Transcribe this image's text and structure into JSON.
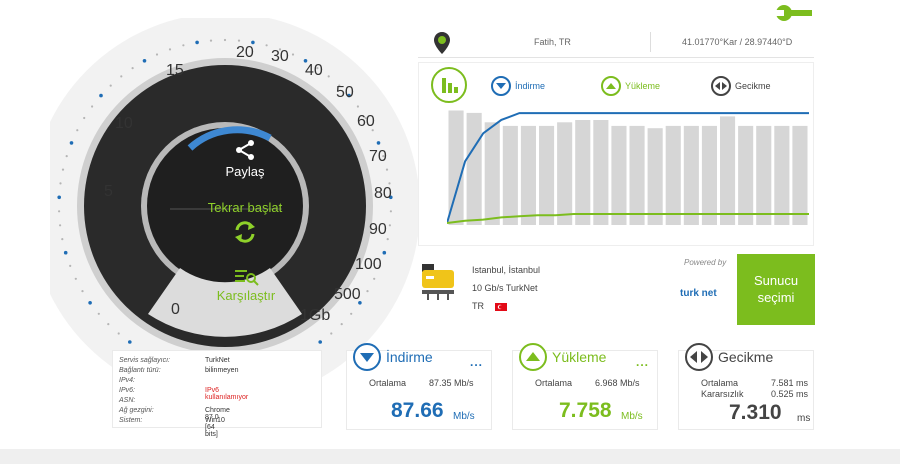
{
  "location": {
    "city": "Fatih, TR",
    "coordinates": "41.01770°Kar / 28.97440°D"
  },
  "gauge": {
    "share_label": "Paylaş",
    "restart_label": "Tekrar başlat",
    "compare_label": "Karşılaştır",
    "ticks": [
      "0",
      "5",
      "10",
      "15",
      "20",
      "30",
      "40",
      "50",
      "60",
      "70",
      "80",
      "90",
      "100",
      "500",
      "1Gb"
    ]
  },
  "legend": {
    "download": "İndirme",
    "upload": "Yükleme",
    "latency": "Gecikme"
  },
  "colors": {
    "accent_green": "#7cbd1e",
    "download_blue": "#1f6db5",
    "latency_dark": "#444444",
    "gauge_dark": "#2a2a2a"
  },
  "server": {
    "name": "Istanbul, İstanbul",
    "provider": "10 Gb/s TurkNet",
    "country": "TR",
    "powered_by": "Powered by",
    "sponsor": "turk net",
    "select_label": "Sunucu seçimi"
  },
  "info": {
    "rows": [
      {
        "label": "Servis sağlayıcı:",
        "value": "TurkNet"
      },
      {
        "label": "Bağlantı türü:",
        "value": "bilinmeyen"
      },
      {
        "label": "IPv4:",
        "value": ""
      },
      {
        "label": "IPv6:",
        "value": "IPv6 kullanılamıyor"
      },
      {
        "label": "ASN:",
        "value": ""
      },
      {
        "label": "Ağ gezgini:",
        "value": "Chrome 87.0"
      },
      {
        "label": "Sistem:",
        "value": "Win10 [64 bits]"
      }
    ]
  },
  "results": {
    "download": {
      "title": "İndirme",
      "more": "...",
      "avg_label": "Ortalama",
      "avg_value": "87.35 Mb/s",
      "value": "87.66",
      "unit": "Mb/s"
    },
    "upload": {
      "title": "Yükleme",
      "more": "...",
      "avg_label": "Ortalama",
      "avg_value": "6.968 Mb/s",
      "value": "7.758",
      "unit": "Mb/s"
    },
    "latency": {
      "title": "Gecikme",
      "avg_label": "Ortalama",
      "avg_value": "7.581 ms",
      "jitter_label": "Kararsızlık",
      "jitter_value": "0.525 ms",
      "value": "7.310",
      "unit": "ms"
    }
  },
  "chart_data": {
    "type": "line",
    "bars": [
      0.97,
      0.95,
      0.87,
      0.84,
      0.84,
      0.84,
      0.87,
      0.89,
      0.89,
      0.84,
      0.84,
      0.82,
      0.84,
      0.84,
      0.84,
      0.92,
      0.84,
      0.84,
      0.84,
      0.84
    ],
    "series": [
      {
        "color": "#1f6db5",
        "values": [
          0.0,
          0.55,
          0.8,
          0.92,
          0.98,
          0.98,
          0.98,
          0.98,
          0.98,
          0.98,
          0.98,
          0.98,
          0.98,
          0.98,
          0.98,
          0.98,
          0.98,
          0.98,
          0.98,
          0.98,
          0.98
        ]
      },
      {
        "color": "#7cbd1e",
        "values": [
          0.0,
          0.02,
          0.03,
          0.05,
          0.06,
          0.07,
          0.07,
          0.08,
          0.08,
          0.08,
          0.08,
          0.08,
          0.08,
          0.08,
          0.08,
          0.08,
          0.08,
          0.08,
          0.08,
          0.08,
          0.08
        ]
      }
    ]
  }
}
